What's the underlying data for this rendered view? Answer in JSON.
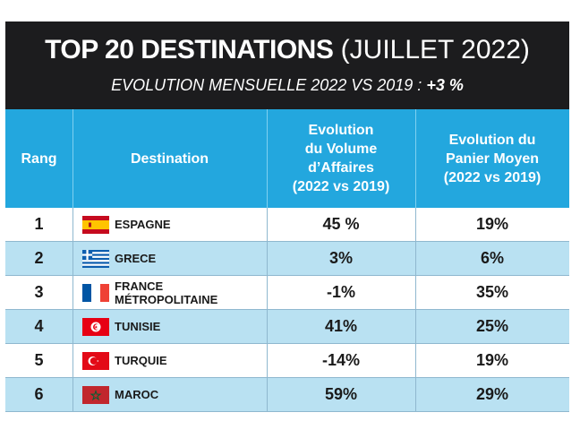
{
  "title": {
    "bold": "TOP 20 DESTINATIONS",
    "light": " (JUILLET 2022)",
    "subtitle": "EVOLUTION MENSUELLE 2022 VS 2019 : ",
    "subtitle_value": "+3 %"
  },
  "headers": {
    "rang": "Rang",
    "destination": "Destination",
    "volume": [
      "Evolution",
      "du Volume",
      "d’Affaires",
      "(2022 vs 2019)"
    ],
    "panier": [
      "Evolution du",
      "Panier Moyen",
      "(2022 vs 2019)"
    ]
  },
  "rows": [
    {
      "rang": "1",
      "destination": "ESPAGNE",
      "flag": "spain-flag-icon",
      "volume": "45 %",
      "panier": "19%"
    },
    {
      "rang": "2",
      "destination": "GRECE",
      "flag": "greece-flag-icon",
      "volume": "3%",
      "panier": "6%"
    },
    {
      "rang": "3",
      "destination": "FRANCE MÉTROPOLITAINE",
      "flag": "france-flag-icon",
      "volume": "-1%",
      "panier": "35%"
    },
    {
      "rang": "4",
      "destination": "TUNISIE",
      "flag": "tunisia-flag-icon",
      "volume": "41%",
      "panier": "25%"
    },
    {
      "rang": "5",
      "destination": "TURQUIE",
      "flag": "turkey-flag-icon",
      "volume": "-14%",
      "panier": "19%"
    },
    {
      "rang": "6",
      "destination": "MAROC",
      "flag": "morocco-flag-icon",
      "volume": "59%",
      "panier": "29%"
    }
  ],
  "colors": {
    "title_background": "#1c1c1e",
    "header_background": "#23a7de",
    "alt_row": "#b9e1f2"
  }
}
